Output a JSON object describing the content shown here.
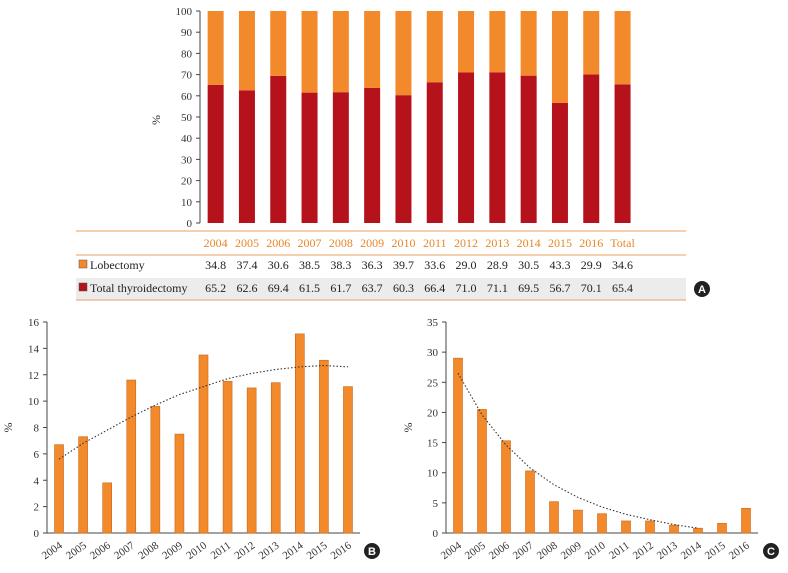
{
  "colors": {
    "lobectomy": "#f28a2b",
    "total": "#b5121b",
    "bar": "#f28a2b",
    "bar_stroke": "#c8661a",
    "header": "#e8862a",
    "axis": "#444444",
    "badge": "#222222"
  },
  "chart_data": [
    {
      "type": "bar",
      "stacked": true,
      "panel": "A",
      "categories": [
        "2004",
        "2005",
        "2006",
        "2007",
        "2008",
        "2009",
        "2010",
        "2011",
        "2012",
        "2013",
        "2014",
        "2015",
        "2016",
        "Total"
      ],
      "series": [
        {
          "name": "Total thyroidectomy",
          "values": [
            65.2,
            62.6,
            69.4,
            61.5,
            61.7,
            63.7,
            60.3,
            66.4,
            71.0,
            71.1,
            69.5,
            56.7,
            70.1,
            65.4
          ]
        },
        {
          "name": "Lobectomy",
          "values": [
            34.8,
            37.4,
            30.6,
            38.5,
            38.3,
            36.3,
            39.7,
            33.6,
            29.0,
            28.9,
            30.5,
            43.3,
            29.9,
            34.6
          ]
        }
      ],
      "table": {
        "rows": [
          {
            "label": "Lobectomy",
            "values": [
              "34.8",
              "37.4",
              "30.6",
              "38.5",
              "38.3",
              "36.3",
              "39.7",
              "33.6",
              "29.0",
              "28.9",
              "30.5",
              "43.3",
              "29.9",
              "34.6"
            ]
          },
          {
            "label": "Total thyroidectomy",
            "values": [
              "65.2",
              "62.6",
              "69.4",
              "61.5",
              "61.7",
              "63.7",
              "60.3",
              "66.4",
              "71.0",
              "71.1",
              "69.5",
              "56.7",
              "70.1",
              "65.4"
            ]
          }
        ]
      },
      "ylabel": "%",
      "ylim": [
        0,
        100
      ],
      "yticks": [
        0,
        10,
        20,
        30,
        40,
        50,
        60,
        70,
        80,
        90,
        100
      ],
      "legend": "table"
    },
    {
      "type": "bar",
      "panel": "B",
      "categories": [
        "2004",
        "2005",
        "2006",
        "2007",
        "2008",
        "2009",
        "2010",
        "2011",
        "2012",
        "2013",
        "2014",
        "2015",
        "2016"
      ],
      "values": [
        6.7,
        7.3,
        3.8,
        11.6,
        9.6,
        7.5,
        13.5,
        11.5,
        11.0,
        11.4,
        15.1,
        13.1,
        11.1
      ],
      "trendline": [
        5.6,
        6.8,
        7.8,
        8.8,
        9.7,
        10.5,
        11.1,
        11.7,
        12.1,
        12.4,
        12.6,
        12.7,
        12.6
      ],
      "ylabel": "%",
      "ylim": [
        0,
        16
      ],
      "yticks": [
        0,
        2,
        4,
        6,
        8,
        10,
        12,
        14,
        16
      ],
      "grid": false
    },
    {
      "type": "bar",
      "panel": "C",
      "categories": [
        "2004",
        "2005",
        "2006",
        "2007",
        "2008",
        "2009",
        "2010",
        "2011",
        "2012",
        "2013",
        "2014",
        "2015",
        "2016"
      ],
      "values": [
        29.0,
        20.5,
        15.3,
        10.3,
        5.2,
        3.8,
        3.2,
        2.0,
        2.0,
        1.3,
        0.8,
        1.6,
        4.1
      ],
      "trendline": [
        26.5,
        19.6,
        14.6,
        10.8,
        8.0,
        5.9,
        4.3,
        3.1,
        2.2,
        1.4,
        0.8
      ],
      "ylabel": "%",
      "ylim": [
        0,
        35
      ],
      "yticks": [
        0,
        5,
        10,
        15,
        20,
        25,
        30,
        35
      ],
      "grid": false
    }
  ]
}
